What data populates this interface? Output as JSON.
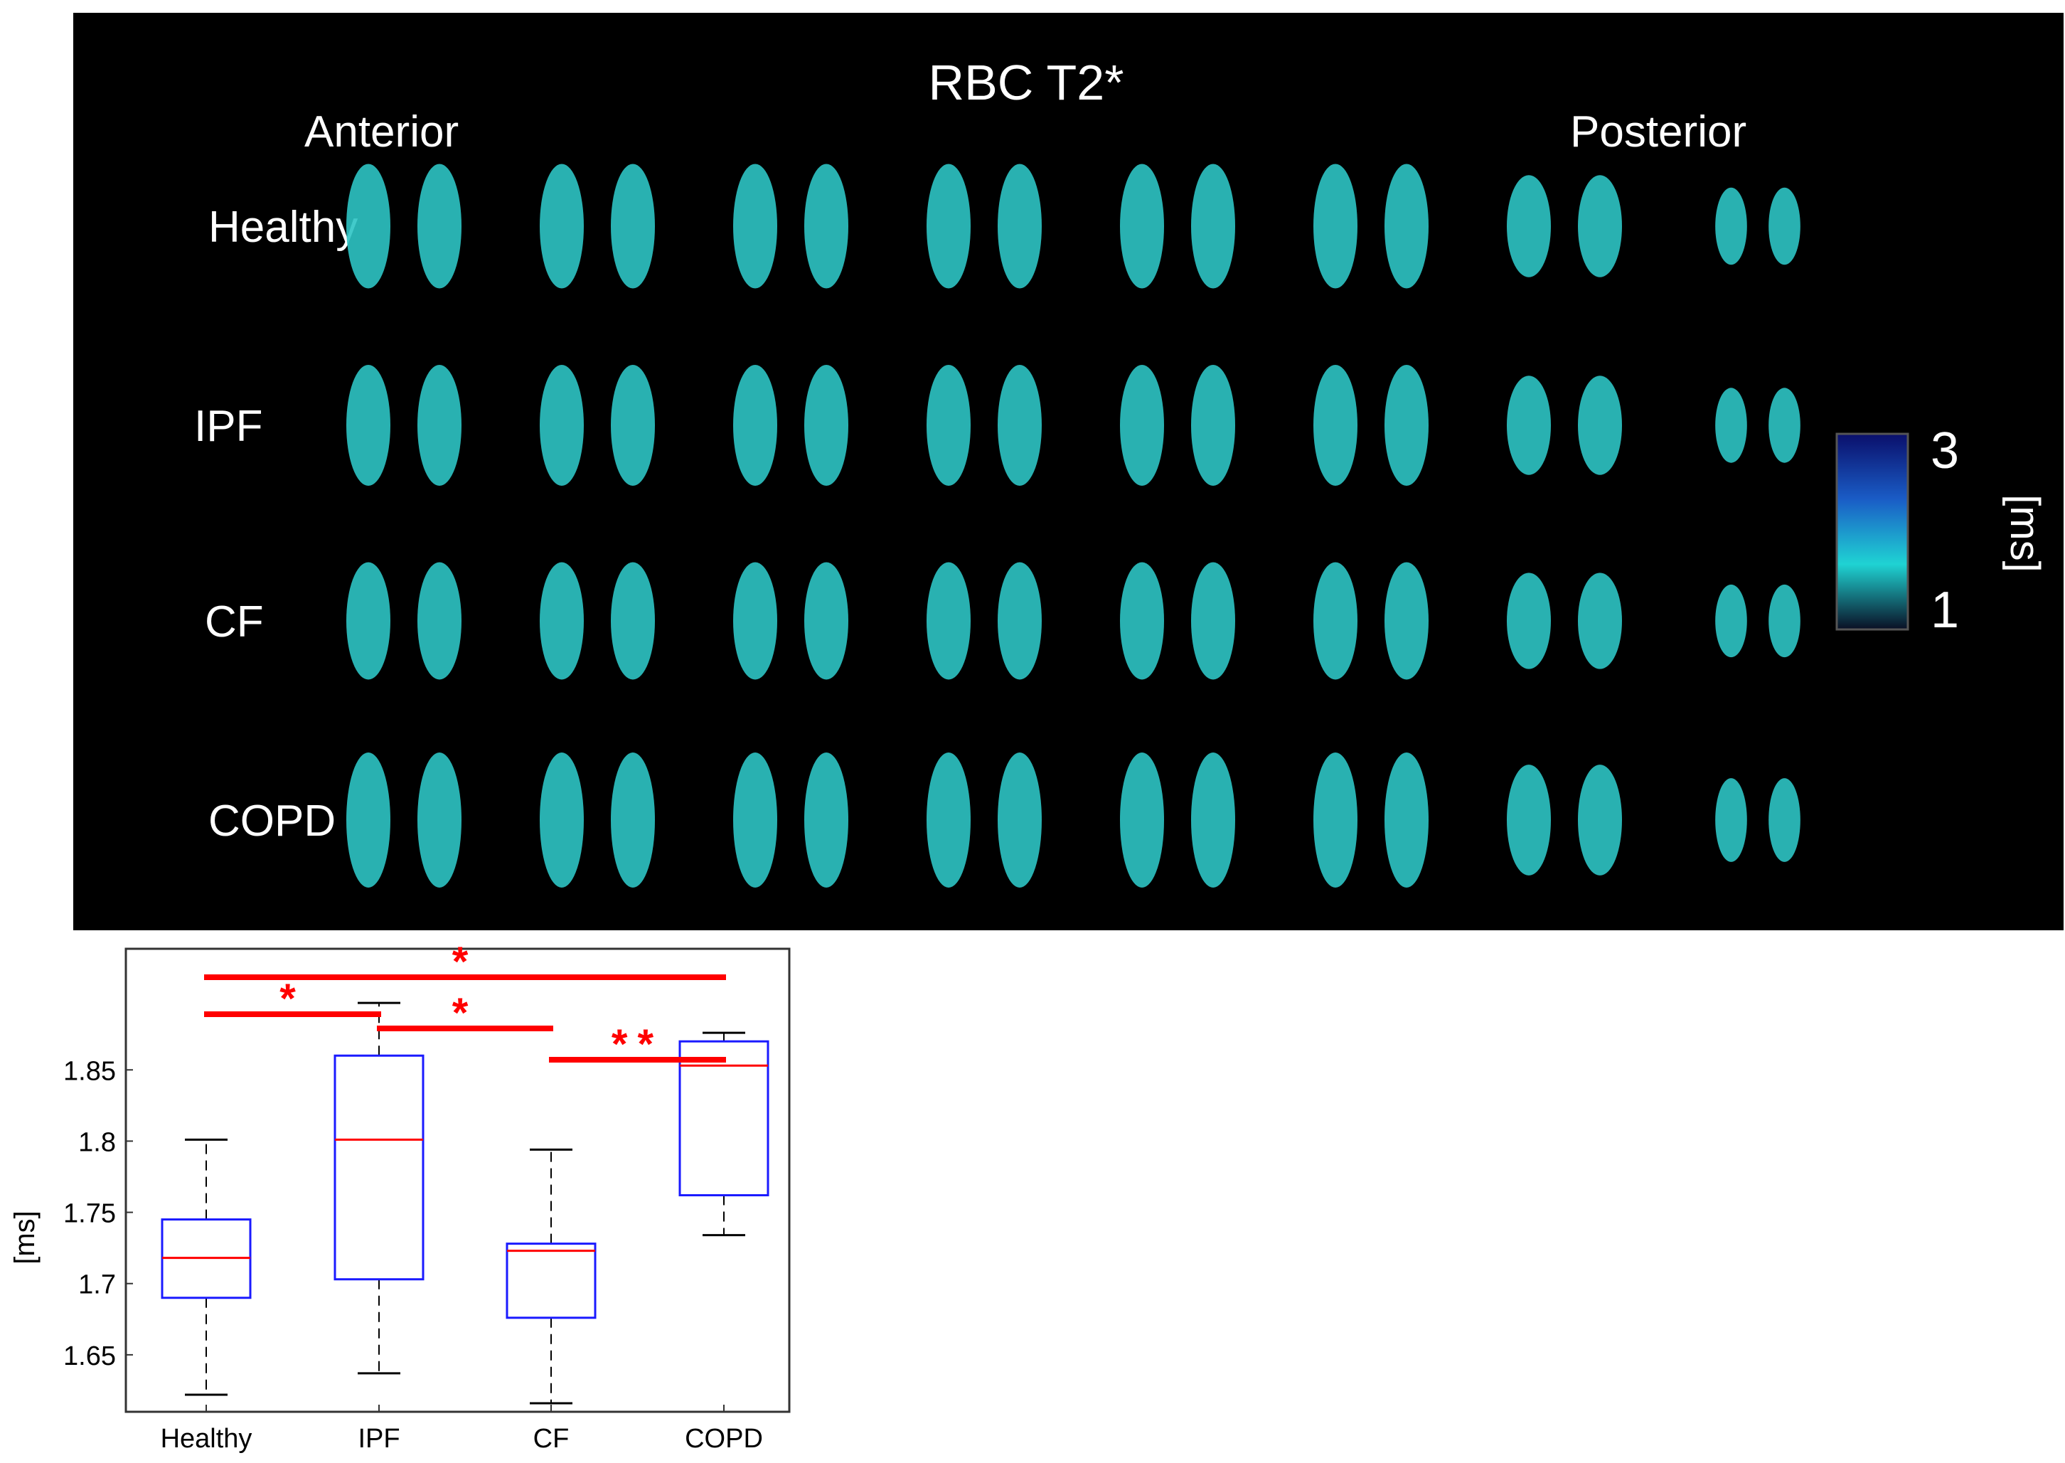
{
  "figure": {
    "title": "RBC T2*",
    "anterior_label": "Anterior",
    "posterior_label": "Posterior",
    "row_labels": [
      "Healthy",
      "IPF",
      "CF",
      "COPD"
    ],
    "slices_per_row": 8,
    "colorbar": {
      "max_label": "3",
      "min_label": "1",
      "unit_label": "[ms]",
      "colors": [
        "#0a0f24",
        "#1fd3d3",
        "#1a5cc6",
        "#0a0f6b"
      ]
    },
    "lung_color": "#2ec4c4"
  },
  "chart_data": {
    "type": "box",
    "categories": [
      "Healthy",
      "IPF",
      "CF",
      "COPD"
    ],
    "ylabel": "[ms]",
    "ylim": [
      1.61,
      1.935
    ],
    "yticks": [
      "1.65",
      "1.7",
      "1.75",
      "1.8",
      "1.85"
    ],
    "boxes": [
      {
        "name": "Healthy",
        "whisker_low": 1.622,
        "q1": 1.69,
        "median": 1.718,
        "q3": 1.745,
        "whisker_high": 1.801
      },
      {
        "name": "IPF",
        "whisker_low": 1.637,
        "q1": 1.703,
        "median": 1.801,
        "q3": 1.86,
        "whisker_high": 1.897
      },
      {
        "name": "CF",
        "whisker_low": 1.616,
        "q1": 1.676,
        "median": 1.723,
        "q3": 1.728,
        "whisker_high": 1.794
      },
      {
        "name": "COPD",
        "whisker_low": 1.734,
        "q1": 1.762,
        "median": 1.853,
        "q3": 1.87,
        "whisker_high": 1.876
      }
    ],
    "significance": [
      {
        "from": "Healthy",
        "to": "COPD",
        "label": "*"
      },
      {
        "from": "Healthy",
        "to": "IPF",
        "label": "*"
      },
      {
        "from": "IPF",
        "to": "CF",
        "label": "*"
      },
      {
        "from": "CF",
        "to": "COPD",
        "label": "**"
      }
    ],
    "colors": {
      "box": "#1a1aff",
      "median": "#ff0000",
      "whisker": "#000000",
      "significance": "#ff0000"
    }
  }
}
